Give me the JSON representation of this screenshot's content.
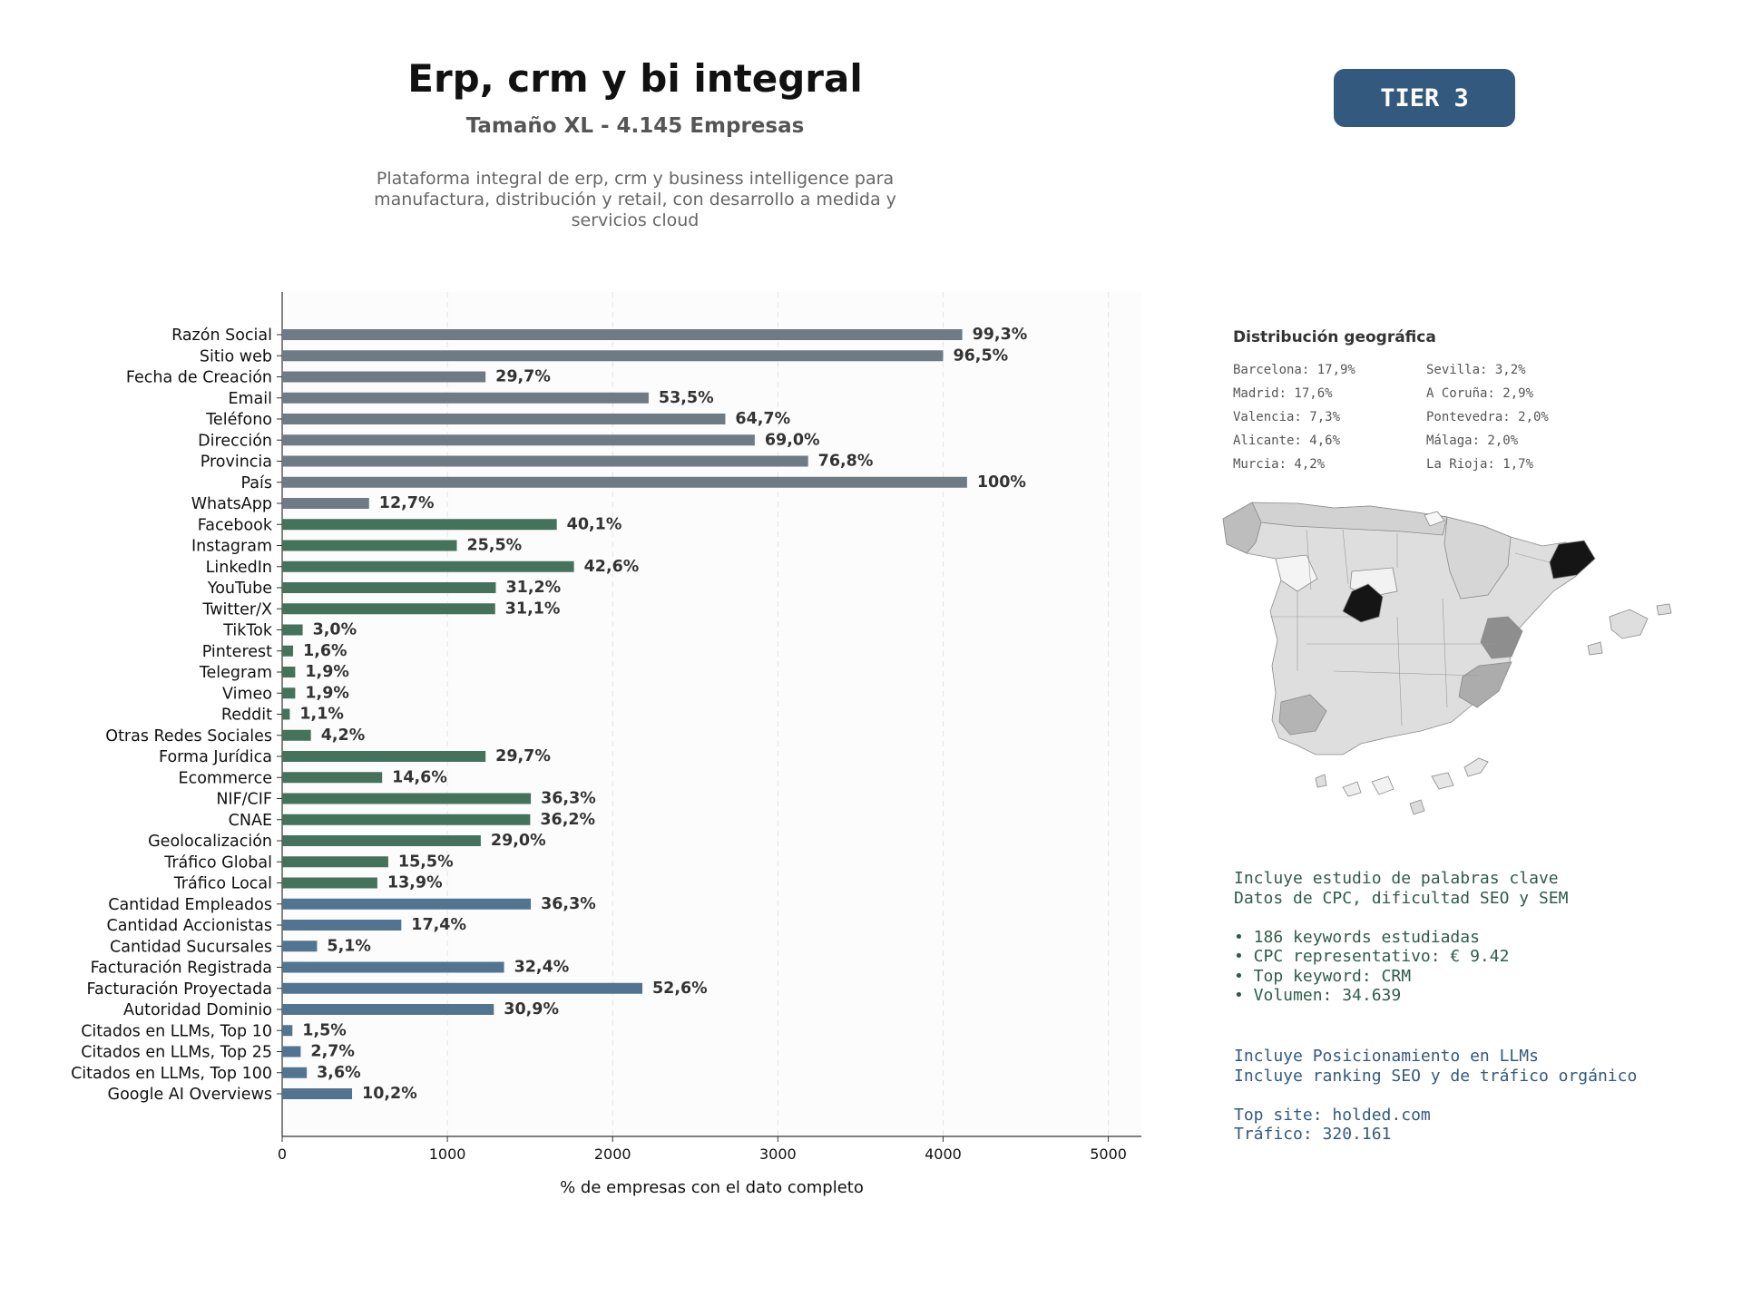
{
  "header": {
    "title": "Erp, crm y bi integral",
    "subtitle": "Tamaño XL - 4.145 Empresas",
    "description": "Plataforma integral de erp, crm y business intelligence para manufactura, distribución y retail, con desarrollo a medida y servicios cloud",
    "tier": "TIER 3"
  },
  "chart_data": {
    "type": "bar",
    "orientation": "horizontal",
    "title": "",
    "xlabel": "% de empresas con el dato completo",
    "ylabel": "",
    "xlim": [
      0,
      5200
    ],
    "xticks": [
      0,
      1000,
      2000,
      3000,
      4000,
      5000
    ],
    "grid": "vertical-dashed",
    "colors": {
      "basic": "#6f7b84",
      "social": "#45725d",
      "business": "#527491"
    },
    "categories": [
      "Razón Social",
      "Sitio web",
      "Fecha de Creación",
      "Email",
      "Teléfono",
      "Dirección",
      "Provincia",
      "País",
      "WhatsApp",
      "Facebook",
      "Instagram",
      "LinkedIn",
      "YouTube",
      "Twitter/X",
      "TikTok",
      "Pinterest",
      "Telegram",
      "Vimeo",
      "Reddit",
      "Otras Redes Sociales",
      "Forma Jurídica",
      "Ecommerce",
      "NIF/CIF",
      "CNAE",
      "Geolocalización",
      "Tráfico Global",
      "Tráfico Local",
      "Cantidad Empleados",
      "Cantidad Accionistas",
      "Cantidad Sucursales",
      "Facturación Registrada",
      "Facturación Proyectada",
      "Autoridad Dominio",
      "Citados en LLMs, Top 10",
      "Citados en LLMs, Top 25",
      "Citados en LLMs, Top 100",
      "Google AI Overviews"
    ],
    "values": [
      4116,
      4000,
      1231,
      2218,
      2682,
      2860,
      3183,
      4145,
      526,
      1662,
      1057,
      1766,
      1293,
      1289,
      124,
      66,
      79,
      79,
      46,
      174,
      1231,
      605,
      1505,
      1501,
      1202,
      642,
      576,
      1505,
      721,
      211,
      1343,
      2180,
      1281,
      62,
      112,
      149,
      423
    ],
    "labels": [
      "99,3%",
      "96,5%",
      "29,7%",
      "53,5%",
      "64,7%",
      "69,0%",
      "76,8%",
      "100%",
      "12,7%",
      "40,1%",
      "25,5%",
      "42,6%",
      "31,2%",
      "31,1%",
      "3,0%",
      "1,6%",
      "1,9%",
      "1,9%",
      "1,1%",
      "4,2%",
      "29,7%",
      "14,6%",
      "36,3%",
      "36,2%",
      "29,0%",
      "15,5%",
      "13,9%",
      "36,3%",
      "17,4%",
      "5,1%",
      "32,4%",
      "52,6%",
      "30,9%",
      "1,5%",
      "2,7%",
      "3,6%",
      "10,2%"
    ],
    "groups": [
      "basic",
      "basic",
      "basic",
      "basic",
      "basic",
      "basic",
      "basic",
      "basic",
      "basic",
      "social",
      "social",
      "social",
      "social",
      "social",
      "social",
      "social",
      "social",
      "social",
      "social",
      "social",
      "social",
      "social",
      "social",
      "social",
      "social",
      "social",
      "social",
      "business",
      "business",
      "business",
      "business",
      "business",
      "business",
      "business",
      "business",
      "business",
      "business"
    ]
  },
  "geo": {
    "title": "Distribución geográfica",
    "items": [
      "Barcelona: 17,9%",
      "Sevilla: 3,2%",
      "Madrid: 17,6%",
      "A Coruña: 2,9%",
      "Valencia: 7,3%",
      "Pontevedra: 2,0%",
      "Alicante: 4,6%",
      "Málaga: 2,0%",
      "Murcia: 4,2%",
      "La Rioja: 1,7%"
    ]
  },
  "seo": {
    "line1": "Incluye estudio de palabras clave",
    "line2": "Datos de CPC, dificultad SEO y SEM",
    "bullet1": "• 186 keywords estudiadas",
    "bullet2": "• CPC representativo: € 9.42",
    "bullet3": "• Top keyword: CRM",
    "bullet4": "• Volumen: 34.639"
  },
  "llm": {
    "line1": "Incluye Posicionamiento en LLMs",
    "line2": "Incluye ranking SEO y de tráfico orgánico",
    "site": "Top site: holded.com",
    "traffic": "Tráfico: 320.161"
  }
}
